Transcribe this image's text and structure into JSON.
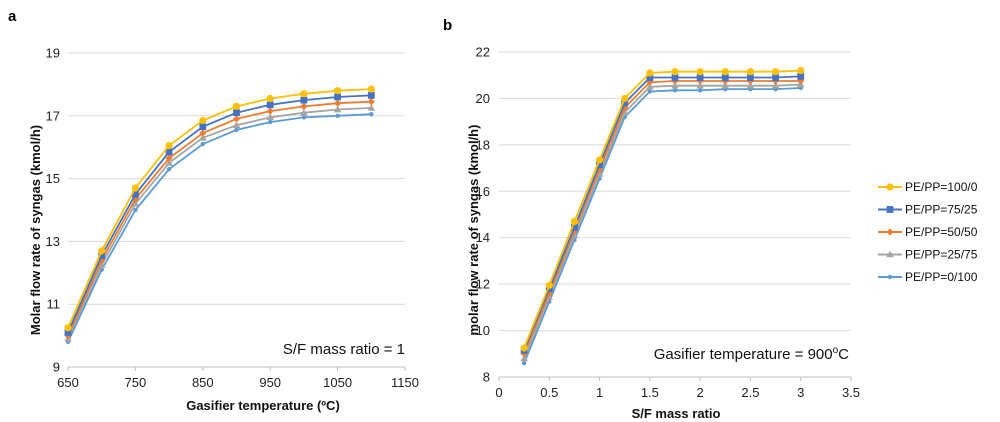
{
  "colors": {
    "PE/PP=100/0": "#FFC000",
    "PE/PP=75/25": "#4472C4",
    "PE/PP=50/50": "#ED7D31",
    "PE/PP=25/75": "#A5A5A5",
    "PE/PP=0/100": "#5B9BD5"
  },
  "legend": [
    "PE/PP=100/0",
    "PE/PP=75/25",
    "PE/PP=50/50",
    "PE/PP=25/75",
    "PE/PP=0/100"
  ],
  "chart_data": [
    {
      "panel": "a",
      "type": "line",
      "xlabel": "Gasifier temperature (ºC)",
      "ylabel": "Molar flow rate of syngas (kmol/h)",
      "annotation": "S/F mass ratio = 1",
      "xlim": [
        650,
        1150
      ],
      "ylim": [
        9,
        19
      ],
      "xticks": [
        "650",
        "750",
        "850",
        "950",
        "1050",
        "1150"
      ],
      "yticks": [
        "9",
        "11",
        "13",
        "15",
        "17",
        "19"
      ],
      "grid": "horizontal",
      "x": [
        650,
        700,
        750,
        800,
        850,
        900,
        950,
        1000,
        1050,
        1100
      ],
      "series": [
        {
          "name": "PE/PP=100/0",
          "marker": "circle",
          "values": [
            10.25,
            12.7,
            14.7,
            16.05,
            16.85,
            17.3,
            17.55,
            17.7,
            17.8,
            17.85
          ]
        },
        {
          "name": "PE/PP=75/25",
          "marker": "square",
          "values": [
            10.1,
            12.55,
            14.5,
            15.85,
            16.65,
            17.1,
            17.35,
            17.5,
            17.6,
            17.65
          ]
        },
        {
          "name": "PE/PP=50/50",
          "marker": "diamond",
          "values": [
            10.0,
            12.4,
            14.35,
            15.65,
            16.45,
            16.9,
            17.15,
            17.3,
            17.4,
            17.45
          ]
        },
        {
          "name": "PE/PP=25/75",
          "marker": "triangle",
          "values": [
            9.9,
            12.25,
            14.2,
            15.5,
            16.3,
            16.7,
            16.95,
            17.1,
            17.2,
            17.25
          ]
        },
        {
          "name": "PE/PP=0/100",
          "marker": "dot",
          "values": [
            9.8,
            12.1,
            14.0,
            15.3,
            16.1,
            16.55,
            16.8,
            16.95,
            17.0,
            17.05
          ]
        }
      ]
    },
    {
      "panel": "b",
      "type": "line",
      "xlabel": "S/F mass ratio",
      "ylabel": "molar flow rate of syngas (kmol/h)",
      "annotation_main": "Gasifier temperature = 900",
      "annotation_sup": "o",
      "annotation_end": "C",
      "xlim": [
        0,
        3.5
      ],
      "ylim": [
        8,
        22
      ],
      "xticks": [
        "0",
        "0.5",
        "1",
        "1.5",
        "2",
        "2.5",
        "3",
        "3.5"
      ],
      "yticks": [
        "8",
        "10",
        "12",
        "14",
        "16",
        "18",
        "20",
        "22"
      ],
      "grid": "horizontal",
      "x": [
        0.25,
        0.5,
        0.75,
        1.0,
        1.25,
        1.5,
        1.75,
        2.0,
        2.25,
        2.5,
        2.75,
        3.0
      ],
      "series": [
        {
          "name": "PE/PP=100/0",
          "marker": "circle",
          "values": [
            9.25,
            11.95,
            14.7,
            17.35,
            20.0,
            21.1,
            21.15,
            21.15,
            21.15,
            21.15,
            21.15,
            21.2
          ]
        },
        {
          "name": "PE/PP=75/25",
          "marker": "square",
          "values": [
            9.15,
            11.8,
            14.45,
            17.15,
            19.8,
            20.9,
            20.9,
            20.9,
            20.9,
            20.9,
            20.9,
            20.95
          ]
        },
        {
          "name": "PE/PP=50/50",
          "marker": "diamond",
          "values": [
            9.0,
            11.6,
            14.3,
            16.95,
            19.6,
            20.7,
            20.75,
            20.75,
            20.75,
            20.75,
            20.75,
            20.75
          ]
        },
        {
          "name": "PE/PP=25/75",
          "marker": "triangle",
          "values": [
            8.8,
            11.45,
            14.1,
            16.75,
            19.4,
            20.5,
            20.55,
            20.55,
            20.55,
            20.55,
            20.55,
            20.6
          ]
        },
        {
          "name": "PE/PP=0/100",
          "marker": "dot",
          "values": [
            8.6,
            11.25,
            13.9,
            16.55,
            19.2,
            20.3,
            20.35,
            20.35,
            20.4,
            20.4,
            20.4,
            20.45
          ]
        }
      ]
    }
  ]
}
